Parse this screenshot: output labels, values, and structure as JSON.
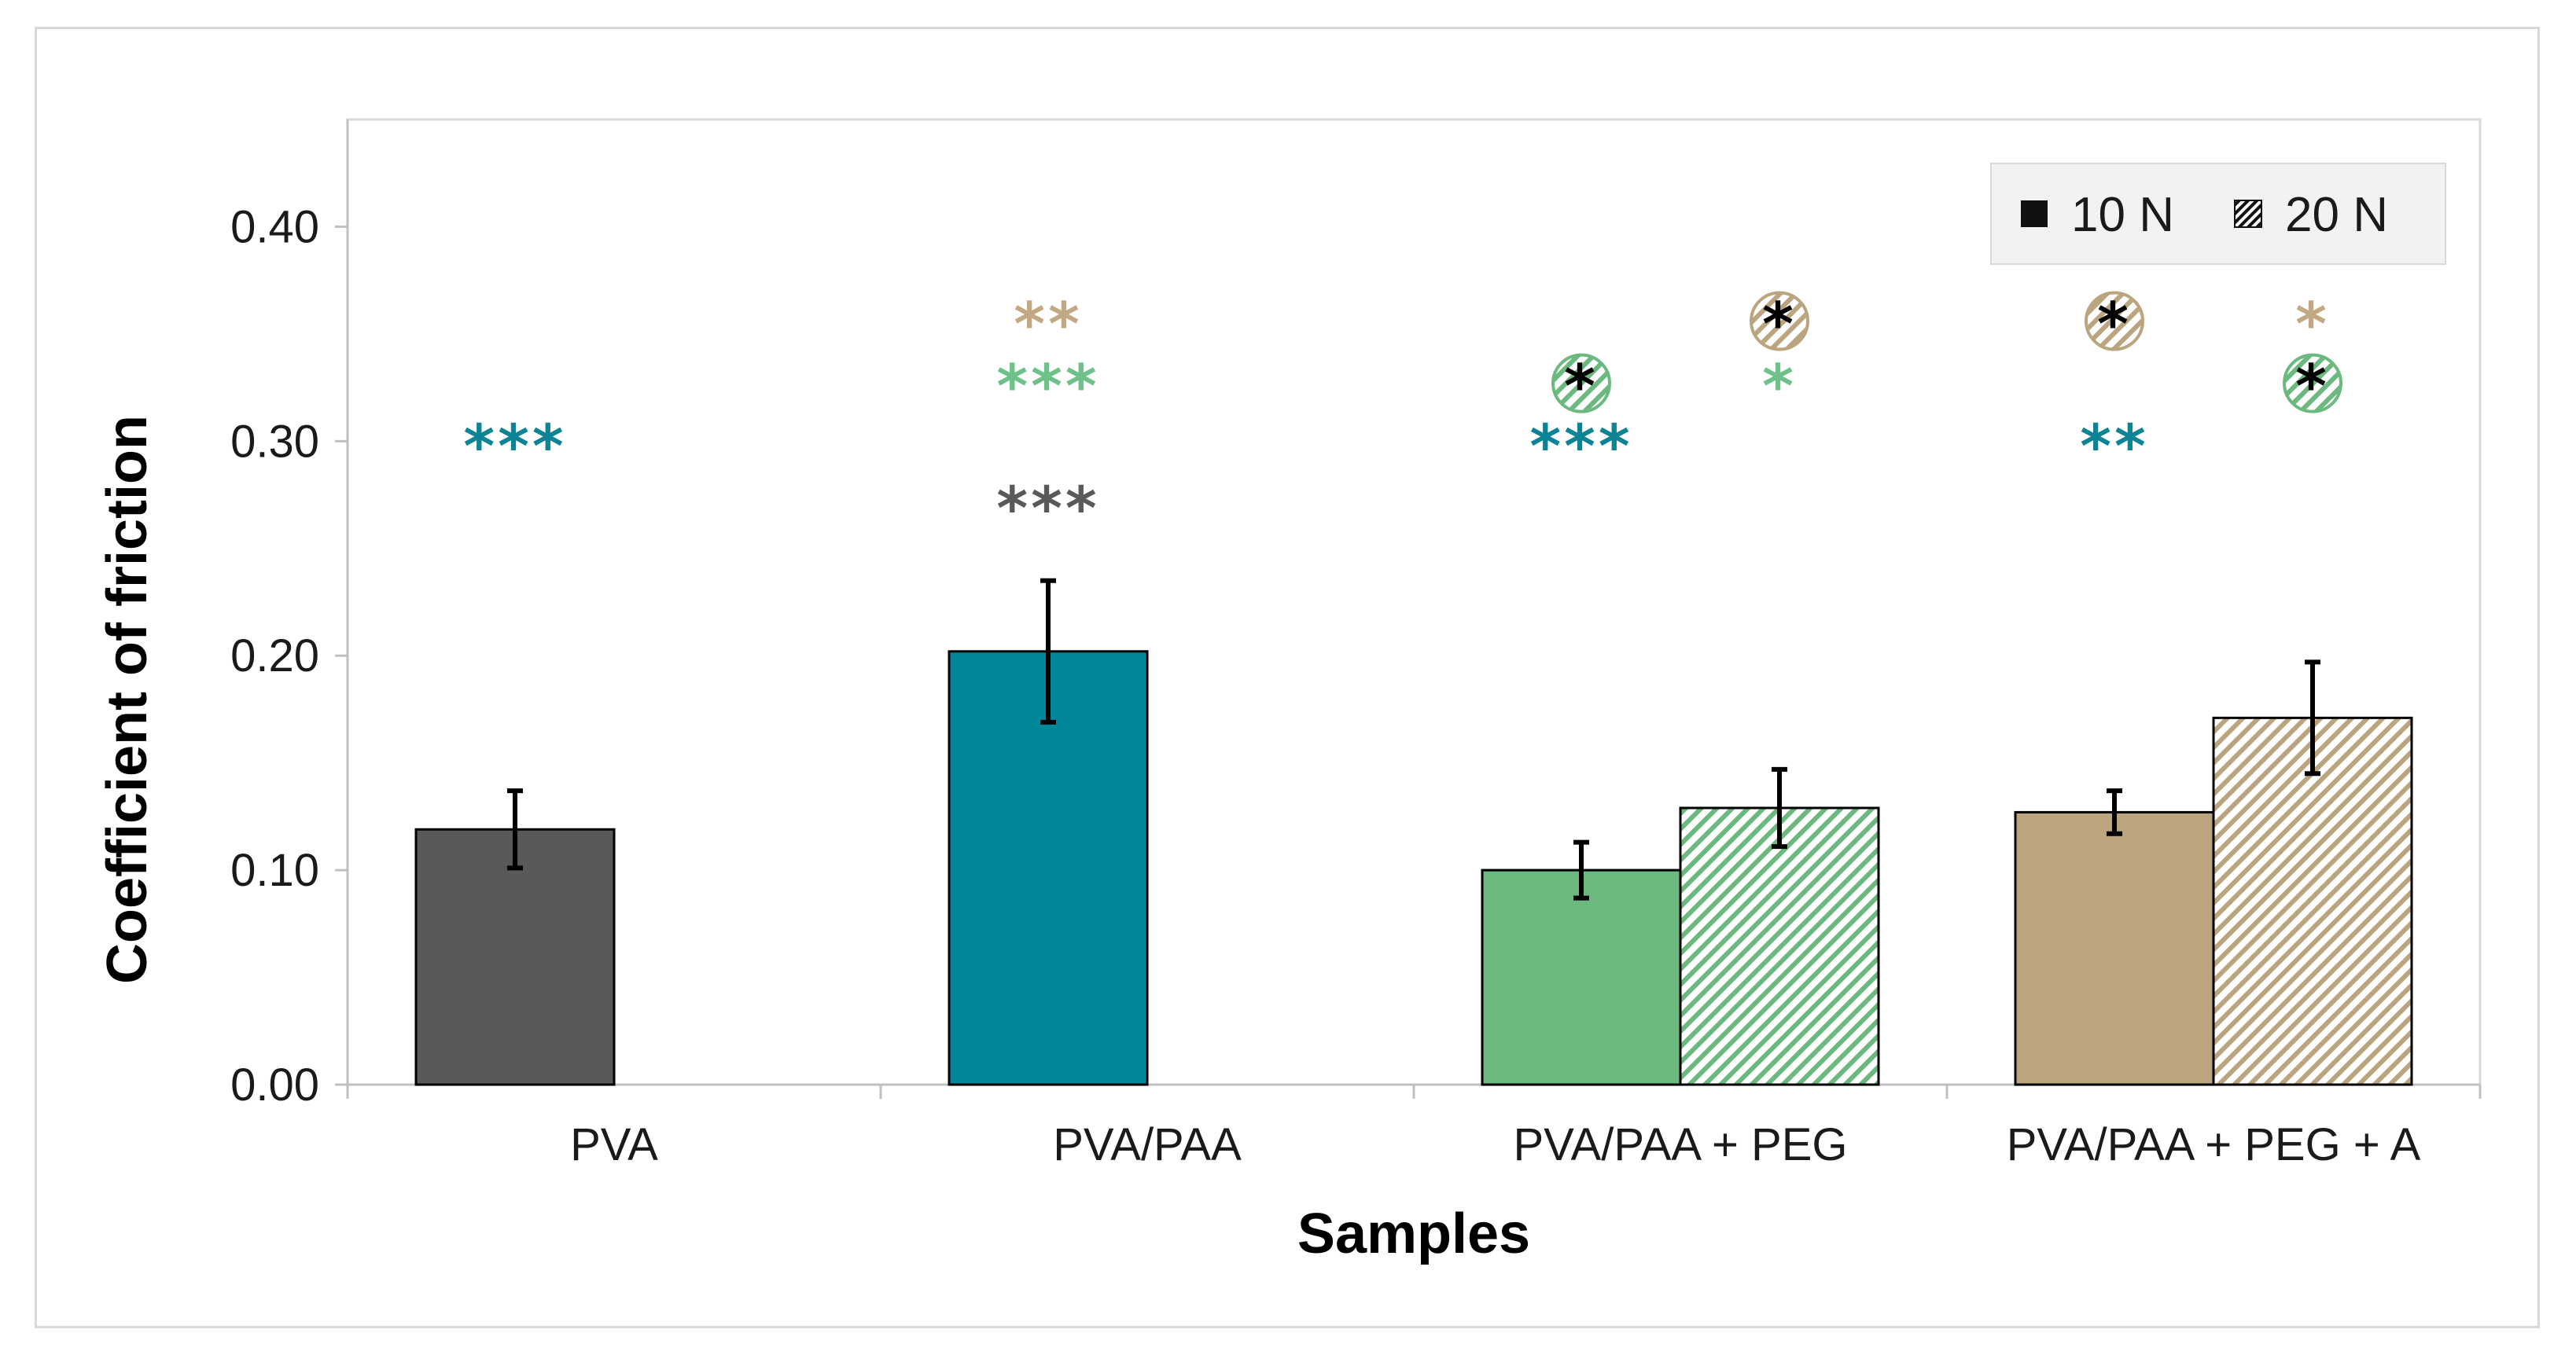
{
  "chart_data": {
    "type": "bar",
    "title": "",
    "xlabel": "Samples",
    "ylabel": "Coefficient of friction",
    "ylim": [
      0,
      0.45
    ],
    "yticks": [
      "0.00",
      "0.10",
      "0.20",
      "0.30",
      "0.40"
    ],
    "ytick_values": [
      0,
      0.1,
      0.2,
      0.3,
      0.4
    ],
    "grid": false,
    "legend_position": "top-right",
    "categories": [
      "PVA",
      "PVA/PAA",
      "PVA/PAA + PEG",
      "PVA/PAA + PEG + A"
    ],
    "series": [
      {
        "name": "10 N",
        "pattern": "solid",
        "values": [
          0.119,
          0.202,
          0.1,
          0.127
        ],
        "errors": [
          0.018,
          0.033,
          0.013,
          0.01
        ]
      },
      {
        "name": "20 N",
        "pattern": "hatched",
        "values": [
          null,
          null,
          0.129,
          0.171
        ],
        "errors": [
          null,
          null,
          0.018,
          0.026
        ]
      }
    ],
    "category_colors": [
      "#595959",
      "#00889a",
      "#6bb97e",
      "#bba57f"
    ],
    "annotations": [
      {
        "text": "***",
        "category": 0,
        "slot": "left",
        "y": 0.299,
        "color": "#0d8495"
      },
      {
        "text": "**",
        "category": 1,
        "slot": "left",
        "y": 0.356,
        "color": "#c2a883"
      },
      {
        "text": "***",
        "category": 1,
        "slot": "left",
        "y": 0.327,
        "color": "#6fc18a"
      },
      {
        "text": "***",
        "category": 1,
        "slot": "left",
        "y": 0.27,
        "color": "#595959"
      },
      {
        "text": "*",
        "category": 2,
        "slot": "left",
        "y": 0.327,
        "color": "#000000",
        "circled": "green"
      },
      {
        "text": "***",
        "category": 2,
        "slot": "left",
        "y": 0.299,
        "color": "#0d8495"
      },
      {
        "text": "*",
        "category": 2,
        "slot": "right",
        "y": 0.356,
        "color": "#000000",
        "circled": "tan"
      },
      {
        "text": "*",
        "category": 2,
        "slot": "right",
        "y": 0.327,
        "color": "#6fc18a"
      },
      {
        "text": "*",
        "category": 3,
        "slot": "left",
        "y": 0.356,
        "color": "#000000",
        "circled": "tan"
      },
      {
        "text": "**",
        "category": 3,
        "slot": "left",
        "y": 0.299,
        "color": "#0d8495"
      },
      {
        "text": "*",
        "category": 3,
        "slot": "right",
        "y": 0.356,
        "color": "#c2a883"
      },
      {
        "text": "*",
        "category": 3,
        "slot": "right",
        "y": 0.327,
        "color": "#000000",
        "circled": "green"
      }
    ]
  }
}
